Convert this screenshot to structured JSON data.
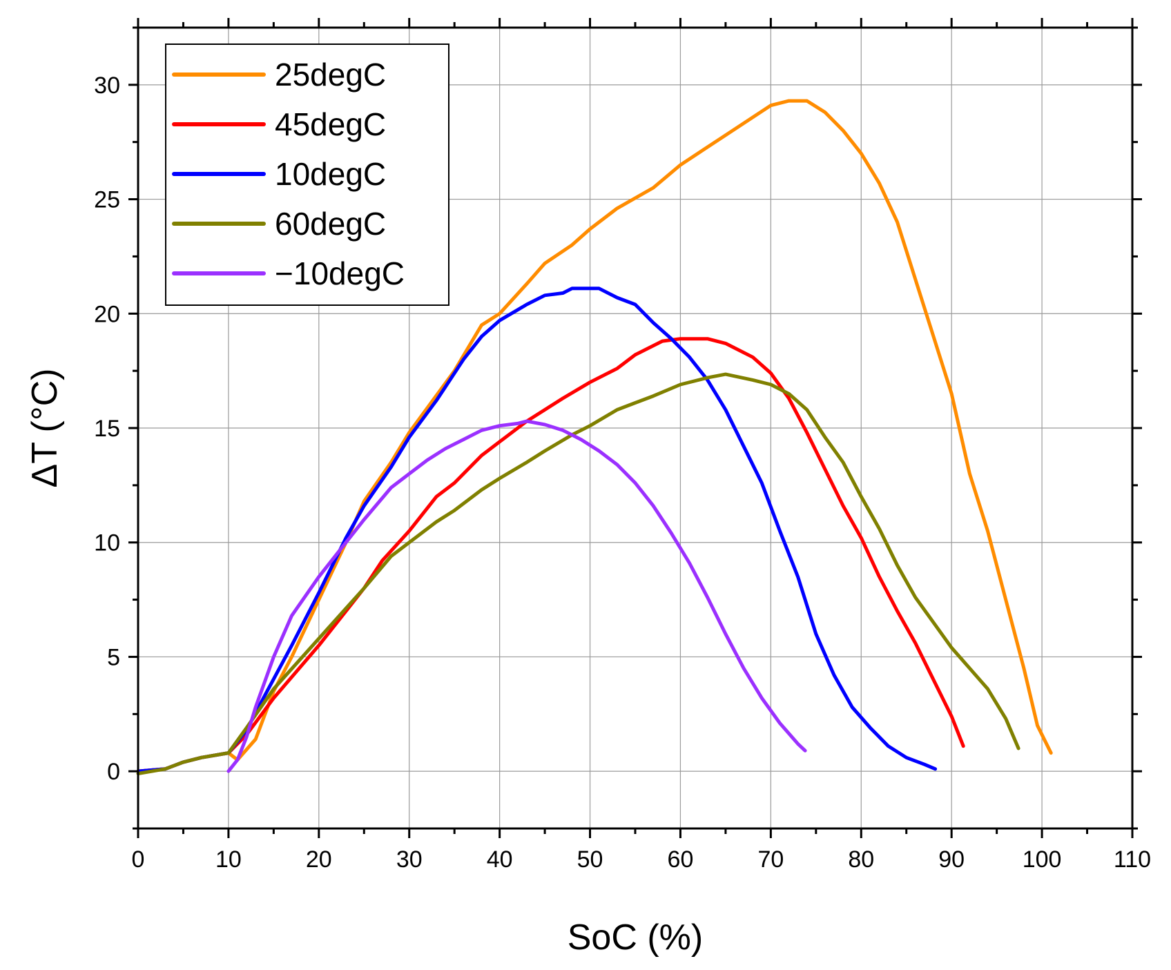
{
  "chart_data": {
    "type": "line",
    "title": "",
    "xlabel": "SoC (%)",
    "ylabel": "ΔT (°C)",
    "xlim": [
      0,
      110
    ],
    "ylim": [
      -2.5,
      32.5
    ],
    "xticks": [
      0,
      10,
      20,
      30,
      40,
      50,
      60,
      70,
      80,
      90,
      100,
      110
    ],
    "yticks": [
      0,
      5,
      10,
      15,
      20,
      25,
      30
    ],
    "grid": true,
    "legend_position": "top-left",
    "series": [
      {
        "name": "25degC",
        "color": "#FF8C00",
        "points": [
          [
            0,
            0
          ],
          [
            3,
            0.1
          ],
          [
            5,
            0.4
          ],
          [
            7,
            0.6
          ],
          [
            10,
            0.8
          ],
          [
            11,
            0.5
          ],
          [
            13,
            1.4
          ],
          [
            15,
            3.5
          ],
          [
            17,
            5.0
          ],
          [
            20,
            7.5
          ],
          [
            23,
            10.0
          ],
          [
            25,
            11.8
          ],
          [
            28,
            13.5
          ],
          [
            30,
            14.8
          ],
          [
            35,
            17.5
          ],
          [
            38,
            19.5
          ],
          [
            40,
            20.0
          ],
          [
            43,
            21.3
          ],
          [
            45,
            22.2
          ],
          [
            48,
            23.0
          ],
          [
            50,
            23.7
          ],
          [
            53,
            24.6
          ],
          [
            57,
            25.5
          ],
          [
            60,
            26.5
          ],
          [
            65,
            27.8
          ],
          [
            70,
            29.1
          ],
          [
            72,
            29.3
          ],
          [
            74,
            29.3
          ],
          [
            76,
            28.8
          ],
          [
            78,
            28.0
          ],
          [
            80,
            27.0
          ],
          [
            82,
            25.7
          ],
          [
            84,
            24.0
          ],
          [
            86,
            21.5
          ],
          [
            88,
            19.0
          ],
          [
            90,
            16.5
          ],
          [
            92,
            13.0
          ],
          [
            94,
            10.5
          ],
          [
            96,
            7.5
          ],
          [
            98,
            4.5
          ],
          [
            99.5,
            2.0
          ],
          [
            101,
            0.8
          ]
        ]
      },
      {
        "name": "45degC",
        "color": "#FF0000",
        "points": [
          [
            0,
            0
          ],
          [
            3,
            0.1
          ],
          [
            5,
            0.4
          ],
          [
            7,
            0.6
          ],
          [
            10,
            0.8
          ],
          [
            12,
            1.6
          ],
          [
            15,
            3.2
          ],
          [
            20,
            5.5
          ],
          [
            25,
            8.0
          ],
          [
            27,
            9.2
          ],
          [
            30,
            10.5
          ],
          [
            33,
            12.0
          ],
          [
            35,
            12.6
          ],
          [
            38,
            13.8
          ],
          [
            40,
            14.4
          ],
          [
            43,
            15.3
          ],
          [
            47,
            16.3
          ],
          [
            50,
            17.0
          ],
          [
            53,
            17.6
          ],
          [
            55,
            18.2
          ],
          [
            58,
            18.8
          ],
          [
            60,
            18.9
          ],
          [
            63,
            18.9
          ],
          [
            65,
            18.7
          ],
          [
            68,
            18.1
          ],
          [
            70,
            17.4
          ],
          [
            72,
            16.3
          ],
          [
            74,
            14.8
          ],
          [
            76,
            13.2
          ],
          [
            78,
            11.6
          ],
          [
            80,
            10.2
          ],
          [
            82,
            8.5
          ],
          [
            84,
            7.0
          ],
          [
            86,
            5.6
          ],
          [
            88,
            4.0
          ],
          [
            90,
            2.4
          ],
          [
            91.3,
            1.1
          ]
        ]
      },
      {
        "name": "10degC",
        "color": "#0000FF",
        "points": [
          [
            0,
            0
          ],
          [
            3,
            0.1
          ],
          [
            5,
            0.4
          ],
          [
            7,
            0.6
          ],
          [
            10,
            0.8
          ],
          [
            12,
            1.8
          ],
          [
            14,
            3.3
          ],
          [
            17,
            5.5
          ],
          [
            20,
            7.8
          ],
          [
            23,
            10.2
          ],
          [
            25,
            11.6
          ],
          [
            28,
            13.3
          ],
          [
            30,
            14.6
          ],
          [
            33,
            16.2
          ],
          [
            36,
            18.0
          ],
          [
            38,
            19.0
          ],
          [
            40,
            19.7
          ],
          [
            43,
            20.4
          ],
          [
            45,
            20.8
          ],
          [
            47,
            20.9
          ],
          [
            48,
            21.1
          ],
          [
            50,
            21.1
          ],
          [
            51,
            21.1
          ],
          [
            53,
            20.7
          ],
          [
            55,
            20.4
          ],
          [
            57,
            19.6
          ],
          [
            59,
            18.9
          ],
          [
            61,
            18.1
          ],
          [
            63,
            17.1
          ],
          [
            65,
            15.8
          ],
          [
            67,
            14.2
          ],
          [
            69,
            12.6
          ],
          [
            71,
            10.5
          ],
          [
            73,
            8.5
          ],
          [
            75,
            6.0
          ],
          [
            77,
            4.2
          ],
          [
            79,
            2.8
          ],
          [
            81,
            1.9
          ],
          [
            83,
            1.1
          ],
          [
            85,
            0.6
          ],
          [
            87,
            0.3
          ],
          [
            88.2,
            0.1
          ]
        ]
      },
      {
        "name": "60degC",
        "color": "#808000",
        "points": [
          [
            0,
            -0.1
          ],
          [
            3,
            0.1
          ],
          [
            5,
            0.4
          ],
          [
            7,
            0.6
          ],
          [
            10,
            0.8
          ],
          [
            12,
            1.9
          ],
          [
            15,
            3.6
          ],
          [
            20,
            5.8
          ],
          [
            25,
            8.0
          ],
          [
            28,
            9.4
          ],
          [
            30,
            10.0
          ],
          [
            33,
            10.9
          ],
          [
            35,
            11.4
          ],
          [
            38,
            12.3
          ],
          [
            40,
            12.8
          ],
          [
            43,
            13.5
          ],
          [
            45,
            14.0
          ],
          [
            48,
            14.7
          ],
          [
            50,
            15.1
          ],
          [
            53,
            15.8
          ],
          [
            55,
            16.1
          ],
          [
            57,
            16.4
          ],
          [
            60,
            16.9
          ],
          [
            63,
            17.2
          ],
          [
            65,
            17.35
          ],
          [
            68,
            17.1
          ],
          [
            70,
            16.9
          ],
          [
            72,
            16.5
          ],
          [
            74,
            15.8
          ],
          [
            76,
            14.6
          ],
          [
            78,
            13.5
          ],
          [
            80,
            12.0
          ],
          [
            82,
            10.6
          ],
          [
            84,
            9.0
          ],
          [
            86,
            7.6
          ],
          [
            88,
            6.5
          ],
          [
            90,
            5.4
          ],
          [
            92,
            4.5
          ],
          [
            94,
            3.6
          ],
          [
            96,
            2.3
          ],
          [
            97.4,
            1.0
          ]
        ]
      },
      {
        "name": "−10degC",
        "color": "#9B30FF",
        "points": [
          [
            10,
            0
          ],
          [
            11,
            0.5
          ],
          [
            12,
            1.5
          ],
          [
            13,
            2.8
          ],
          [
            15,
            5.0
          ],
          [
            17,
            6.8
          ],
          [
            20,
            8.5
          ],
          [
            23,
            10.0
          ],
          [
            25,
            11.0
          ],
          [
            28,
            12.4
          ],
          [
            30,
            13.0
          ],
          [
            32,
            13.6
          ],
          [
            34,
            14.1
          ],
          [
            36,
            14.5
          ],
          [
            38,
            14.9
          ],
          [
            40,
            15.1
          ],
          [
            42,
            15.2
          ],
          [
            43,
            15.3
          ],
          [
            45,
            15.15
          ],
          [
            47,
            14.9
          ],
          [
            49,
            14.5
          ],
          [
            51,
            14.0
          ],
          [
            53,
            13.4
          ],
          [
            55,
            12.6
          ],
          [
            57,
            11.6
          ],
          [
            59,
            10.4
          ],
          [
            61,
            9.1
          ],
          [
            63,
            7.6
          ],
          [
            65,
            6.0
          ],
          [
            67,
            4.5
          ],
          [
            69,
            3.2
          ],
          [
            71,
            2.1
          ],
          [
            73,
            1.2
          ],
          [
            73.8,
            0.9
          ]
        ]
      }
    ]
  }
}
